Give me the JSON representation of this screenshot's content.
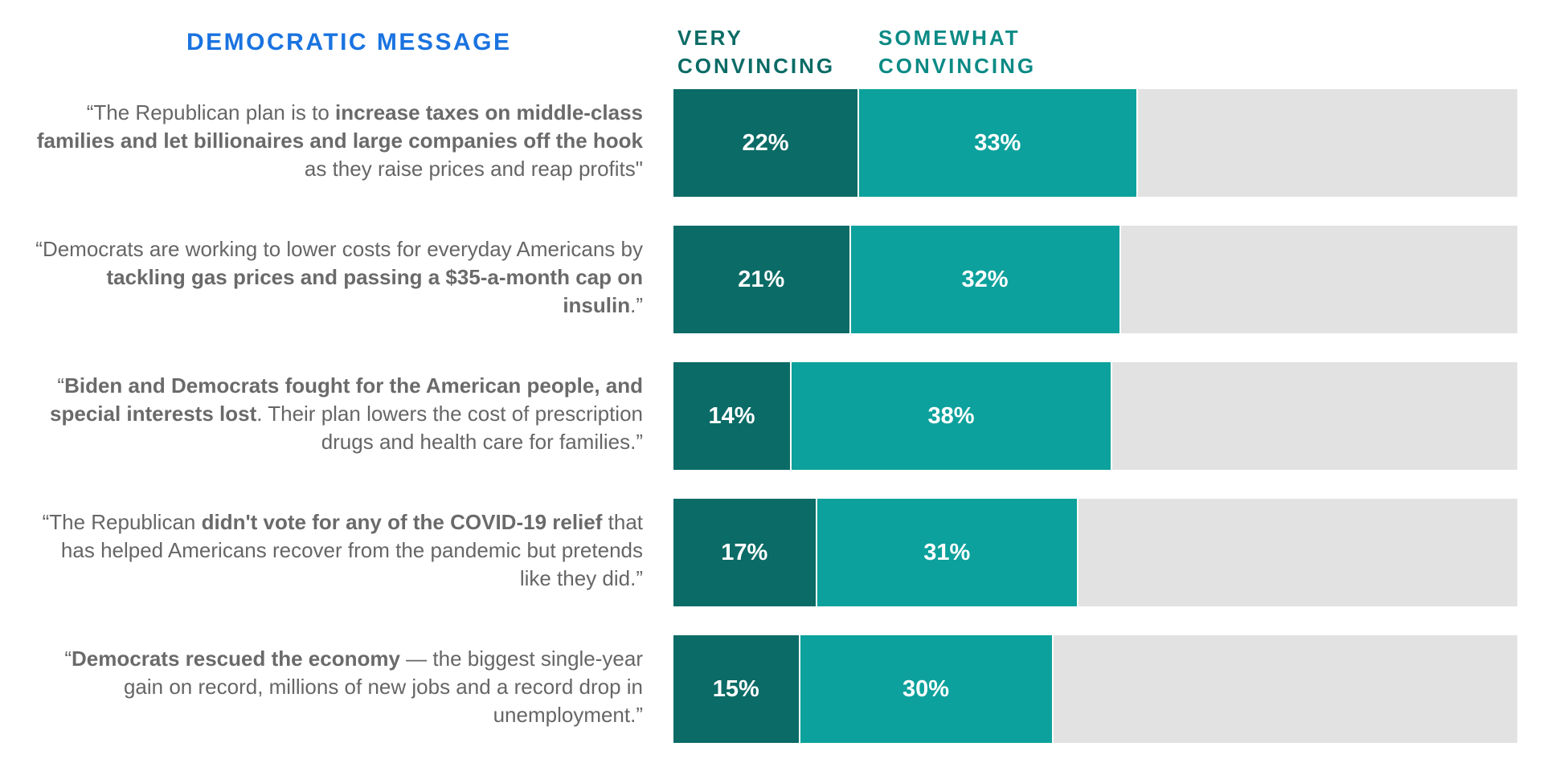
{
  "header": {
    "message_column_title": "DEMOCRATIC MESSAGE",
    "legend": [
      {
        "line1": "VERY",
        "line2": "CONVINCING",
        "color": "#0b6b66"
      },
      {
        "line1": "SOMEWHAT",
        "line2": "CONVINCING",
        "color": "#0b8a85"
      }
    ]
  },
  "colors": {
    "very": "#0b6b66",
    "somewhat": "#0ca19c",
    "remainder": "#e2e2e2",
    "title": "#1a73e0"
  },
  "messages": [
    {
      "parts": [
        {
          "text": "“The Republican plan is to ",
          "bold": false
        },
        {
          "text": "increase taxes on middle-class families and let billionaires and large companies off the hook",
          "bold": true
        },
        {
          "text": " as they raise prices and reap profits\"",
          "bold": false
        }
      ]
    },
    {
      "parts": [
        {
          "text": "“Democrats are working to lower costs for everyday Americans by ",
          "bold": false
        },
        {
          "text": "tackling gas prices and passing a $35-a-month cap on insulin",
          "bold": true
        },
        {
          "text": ".”",
          "bold": false
        }
      ]
    },
    {
      "parts": [
        {
          "text": "“",
          "bold": false
        },
        {
          "text": "Biden and Democrats fought for the American people, and special interests lost",
          "bold": true
        },
        {
          "text": ". Their plan lowers the cost of prescription drugs and health care for families.”",
          "bold": false
        }
      ]
    },
    {
      "parts": [
        {
          "text": "“The Republican ",
          "bold": false
        },
        {
          "text": "didn't vote for any of the COVID-19 relief",
          "bold": true
        },
        {
          "text": " that has helped Americans recover from the pandemic but pretends like they did.”",
          "bold": false
        }
      ]
    },
    {
      "parts": [
        {
          "text": "“",
          "bold": false
        },
        {
          "text": "Democrats rescued the economy",
          "bold": true
        },
        {
          "text": " — the biggest single-year gain on record, millions of new jobs and a record drop in unemployment.”",
          "bold": false
        }
      ]
    }
  ],
  "chart_data": {
    "type": "bar",
    "orientation": "horizontal",
    "stacked": true,
    "categories": [
      "“The Republican plan is to increase taxes on middle-class families and let billionaires and large companies off the hook as they raise prices and reap profits\"",
      "“Democrats are working to lower costs for everyday Americans by tackling gas prices and passing a $35-a-month cap on insulin.”",
      "“Biden and Democrats fought for the American people, and special interests lost. Their plan lowers the cost of prescription drugs and health care for families.”",
      "“The Republican didn't vote for any of the COVID-19 relief that has helped Americans recover from the pandemic but pretends like they did.”",
      "“Democrats rescued the economy — the biggest single-year gain on record, millions of new jobs and a record drop in unemployment.”"
    ],
    "series": [
      {
        "name": "VERY CONVINCING",
        "values": [
          22,
          21,
          14,
          17,
          15
        ],
        "labels": [
          "22%",
          "21%",
          "14%",
          "17%",
          "15%"
        ],
        "color": "#0b6b66"
      },
      {
        "name": "SOMEWHAT CONVINCING",
        "values": [
          33,
          32,
          38,
          31,
          30
        ],
        "labels": [
          "33%",
          "32%",
          "38%",
          "31%",
          "30%"
        ],
        "color": "#0ca19c"
      }
    ],
    "xlim": [
      0,
      100
    ],
    "unit": "%",
    "remainder_color": "#e2e2e2",
    "legend_position": "top"
  }
}
